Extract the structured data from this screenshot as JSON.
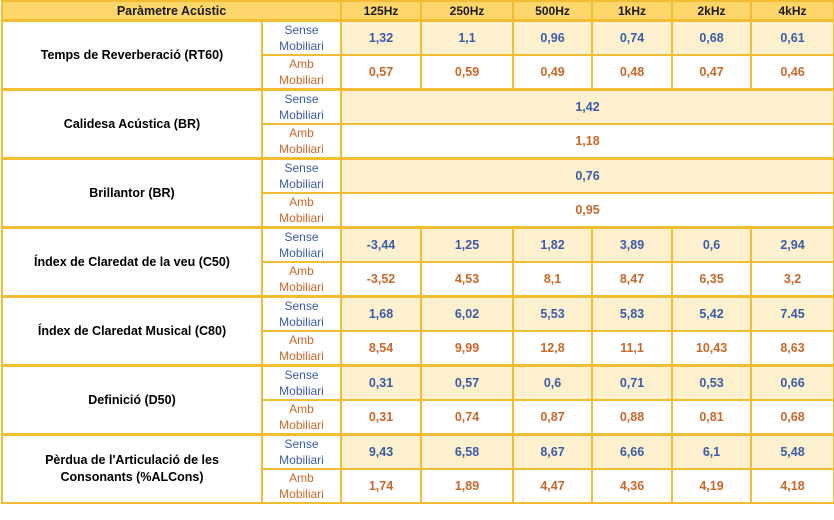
{
  "table": {
    "header": {
      "parameter": "Paràmetre Acústic",
      "bands": [
        "125Hz",
        "250Hz",
        "500Hz",
        "1kHz",
        "2kHz",
        "4kHz"
      ]
    },
    "condition_labels": {
      "sense": [
        "Sense",
        "Mobiliari"
      ],
      "amb": [
        "Amb",
        "Mobiliari"
      ]
    },
    "rows": [
      {
        "parameter_lines": [
          "Temps de Reverberació (RT60)"
        ],
        "sense": [
          "1,32",
          "1,1",
          "0,96",
          "0,74",
          "0,68",
          "0,61"
        ],
        "amb": [
          "0,57",
          "0,59",
          "0,49",
          "0,48",
          "0,47",
          "0,46"
        ]
      },
      {
        "parameter_lines": [
          "Calidesa Acústica (BR)"
        ],
        "sense": [
          "1,42"
        ],
        "amb": [
          "1,18"
        ]
      },
      {
        "parameter_lines": [
          "Brillantor (BR)"
        ],
        "sense": [
          "0,76"
        ],
        "amb": [
          "0,95"
        ]
      },
      {
        "parameter_lines": [
          "Índex de Claredat de la veu (C50)"
        ],
        "sense": [
          "-3,44",
          "1,25",
          "1,82",
          "3,89",
          "0,6",
          "2,94"
        ],
        "amb": [
          "-3,52",
          "4,53",
          "8,1",
          "8,47",
          "6,35",
          "3,2"
        ]
      },
      {
        "parameter_lines": [
          "Índex de Claredat Musical (C80)"
        ],
        "sense": [
          "1,68",
          "6,02",
          "5,53",
          "5,83",
          "5,42",
          "7.45"
        ],
        "amb": [
          "8,54",
          "9,99",
          "12,8",
          "11,1",
          "10,43",
          "8,63"
        ]
      },
      {
        "parameter_lines": [
          "Definició (D50)"
        ],
        "sense": [
          "0,31",
          "0,57",
          "0,6",
          "0,71",
          "0,53",
          "0,66"
        ],
        "amb": [
          "0,31",
          "0,74",
          "0,87",
          "0,88",
          "0,81",
          "0,68"
        ]
      },
      {
        "parameter_lines": [
          "Pèrdua de l'Articulació de les",
          "Consonants (%ALCons)"
        ],
        "sense": [
          "9,43",
          "6,58",
          "8,67",
          "6,66",
          "6,1",
          "5,48"
        ],
        "amb": [
          "1,74",
          "1,89",
          "4,47",
          "4,36",
          "4,19",
          "4,18"
        ]
      }
    ]
  },
  "colors": {
    "border": "#f2bd33",
    "header_bg": "#fcd66a",
    "sense_row_bg": "#fdf0cf",
    "sense_text": "#3c5ca8",
    "amb_text": "#c9672b"
  }
}
